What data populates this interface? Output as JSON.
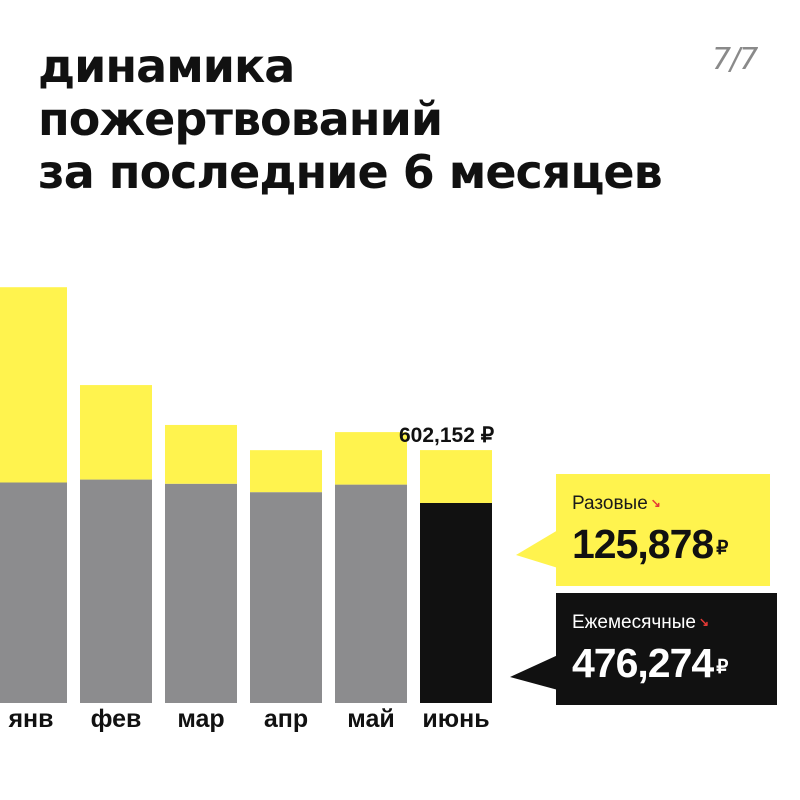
{
  "title": {
    "line1": "динамика",
    "line2": "пожертвований",
    "line3": "за последние 6 месяцев"
  },
  "page_counter": "7/7",
  "colors": {
    "one_time": "#fff34e",
    "monthly_past": "#8c8c8e",
    "monthly_current": "#111111",
    "accent_arrow": "#e53935"
  },
  "callouts": {
    "one_time": {
      "label": "Разовые",
      "arrow": "↘",
      "value": "125,878",
      "currency": "₽"
    },
    "monthly": {
      "label": "Ежемесячные",
      "arrow": "↘",
      "value": "476,274",
      "currency": "₽"
    }
  },
  "chart_data": {
    "type": "bar",
    "stacked": true,
    "categories": [
      "янв",
      "фев",
      "мар",
      "апр",
      "май",
      "июнь"
    ],
    "series": [
      {
        "name": "Ежемесячные",
        "values": [
          525000,
          532000,
          522000,
          502000,
          520000,
          476274
        ]
      },
      {
        "name": "Разовые",
        "values": [
          465000,
          225000,
          140000,
          100000,
          125000,
          125878
        ]
      }
    ],
    "total_label": "602,152 ₽",
    "total_label_category": "июнь",
    "highlight_category": "июнь",
    "ylim": [
      0,
      1000000
    ],
    "grid": false,
    "legend": "callouts-right"
  }
}
